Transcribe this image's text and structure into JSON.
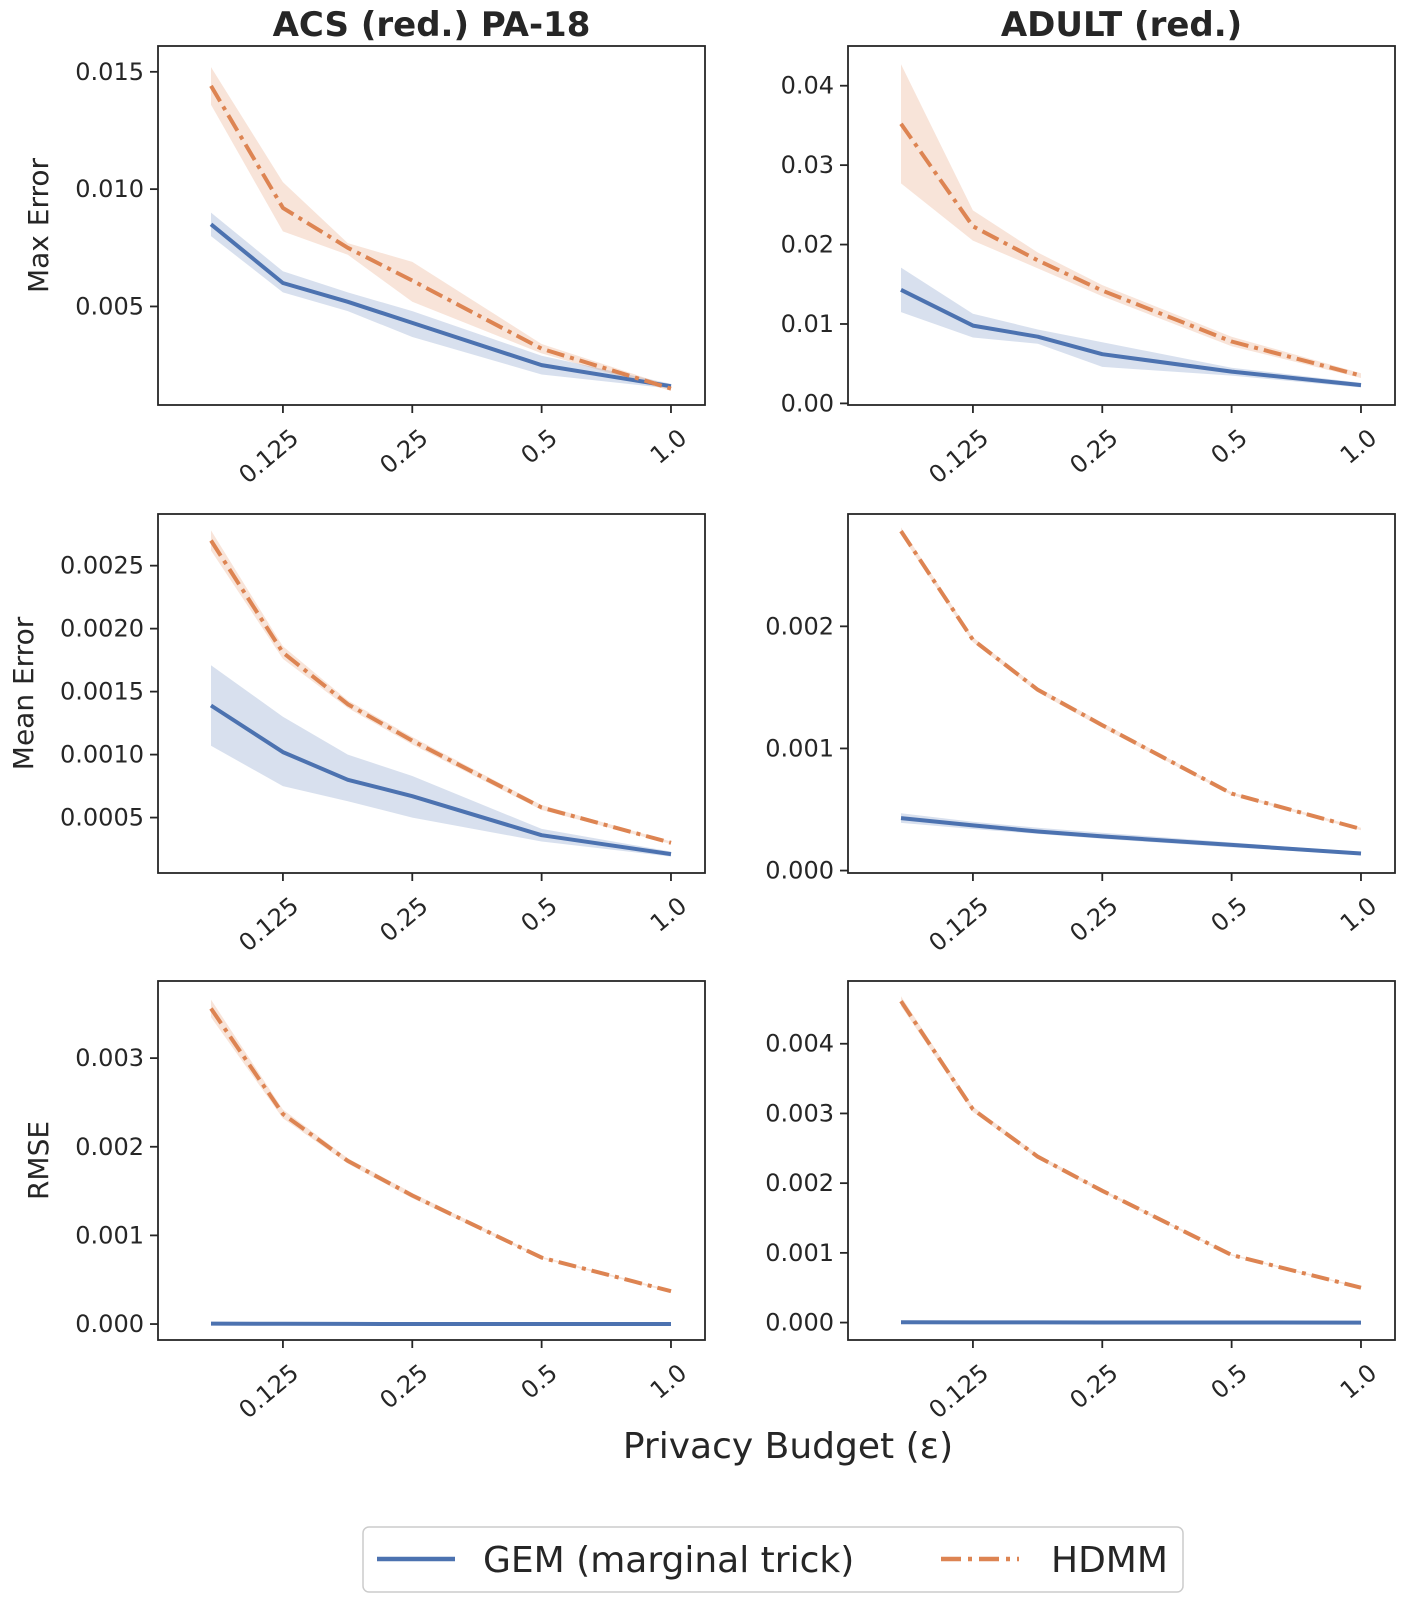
{
  "colors": {
    "gem": "#4c72b0",
    "hdmm": "#dd8452"
  },
  "figure": {
    "xlabel": "Privacy Budget (ε)"
  },
  "legend": {
    "gem_label": "GEM (marginal trick)",
    "hdmm_label": "HDMM"
  },
  "chart_data": [
    {
      "type": "line",
      "panel": "acs-max",
      "title": "ACS (red.) PA-18",
      "ylabel": "Max Error",
      "xscale": "log2",
      "x": [
        0.085,
        0.125,
        0.177,
        0.25,
        0.5,
        1.0
      ],
      "xticks": [
        "0.125",
        "0.25",
        "0.5",
        "1.0"
      ],
      "xtick_values": [
        0.125,
        0.25,
        0.5,
        1.0
      ],
      "xlim": [
        0.064,
        1.2
      ],
      "ylim": [
        0.0008,
        0.0161
      ],
      "yticks": [
        "0.005",
        "0.010",
        "0.015"
      ],
      "ytick_values": [
        0.005,
        0.01,
        0.015
      ],
      "series": [
        {
          "name": "GEM (marginal trick)",
          "style": "solid",
          "x": [
            0.085,
            0.125,
            0.177,
            0.25,
            0.5,
            1.0
          ],
          "values": [
            0.0085,
            0.006,
            0.0052,
            0.0043,
            0.0025,
            0.0016
          ],
          "ci_low": [
            0.008,
            0.0056,
            0.0048,
            0.0037,
            0.0021,
            0.0015
          ],
          "ci_high": [
            0.009,
            0.0065,
            0.0056,
            0.0048,
            0.0029,
            0.0017
          ]
        },
        {
          "name": "HDMM",
          "style": "dashdot",
          "x": [
            0.085,
            0.125,
            0.177,
            0.25,
            0.5,
            1.0
          ],
          "values": [
            0.0144,
            0.0092,
            0.0075,
            0.0061,
            0.0032,
            0.0015
          ],
          "ci_low": [
            0.0136,
            0.0082,
            0.0072,
            0.0052,
            0.003,
            0.0014
          ],
          "ci_high": [
            0.0152,
            0.0103,
            0.0077,
            0.0069,
            0.0034,
            0.0016
          ]
        }
      ]
    },
    {
      "type": "line",
      "panel": "adult-max",
      "title": "ADULT (red.)",
      "ylabel": "",
      "xscale": "log2",
      "x": [
        0.085,
        0.125,
        0.177,
        0.25,
        0.5,
        1.0
      ],
      "xticks": [
        "0.125",
        "0.25",
        "0.5",
        "1.0"
      ],
      "xtick_values": [
        0.125,
        0.25,
        0.5,
        1.0
      ],
      "xlim": [
        0.064,
        1.2
      ],
      "ylim": [
        -0.0002,
        0.045
      ],
      "yticks": [
        "0.00",
        "0.01",
        "0.02",
        "0.03",
        "0.04"
      ],
      "ytick_values": [
        0.0,
        0.01,
        0.02,
        0.03,
        0.04
      ],
      "series": [
        {
          "name": "GEM (marginal trick)",
          "style": "solid",
          "x": [
            0.085,
            0.125,
            0.177,
            0.25,
            0.5,
            1.0
          ],
          "values": [
            0.0143,
            0.0098,
            0.0084,
            0.0062,
            0.004,
            0.0023
          ],
          "ci_low": [
            0.0115,
            0.0083,
            0.0075,
            0.0046,
            0.0035,
            0.002
          ],
          "ci_high": [
            0.0171,
            0.0113,
            0.0093,
            0.0077,
            0.0045,
            0.0026
          ]
        },
        {
          "name": "HDMM",
          "style": "dashdot",
          "x": [
            0.085,
            0.125,
            0.177,
            0.25,
            0.5,
            1.0
          ],
          "values": [
            0.0352,
            0.0223,
            0.018,
            0.0142,
            0.0078,
            0.0035
          ],
          "ci_low": [
            0.0277,
            0.0205,
            0.017,
            0.0135,
            0.0072,
            0.0032
          ],
          "ci_high": [
            0.0427,
            0.0243,
            0.019,
            0.0149,
            0.0084,
            0.0038
          ]
        }
      ]
    },
    {
      "type": "line",
      "panel": "acs-mean",
      "title": "",
      "ylabel": "Mean Error",
      "xscale": "log2",
      "x": [
        0.085,
        0.125,
        0.177,
        0.25,
        0.5,
        1.0
      ],
      "xticks": [
        "0.125",
        "0.25",
        "0.5",
        "1.0"
      ],
      "xtick_values": [
        0.125,
        0.25,
        0.5,
        1.0
      ],
      "xlim": [
        0.064,
        1.2
      ],
      "ylim": [
        6e-05,
        0.00291
      ],
      "yticks": [
        "0.0005",
        "0.0010",
        "0.0015",
        "0.0020",
        "0.0025"
      ],
      "ytick_values": [
        0.0005,
        0.001,
        0.0015,
        0.002,
        0.0025
      ],
      "series": [
        {
          "name": "GEM (marginal trick)",
          "style": "solid",
          "x": [
            0.085,
            0.125,
            0.177,
            0.25,
            0.5,
            1.0
          ],
          "values": [
            0.00139,
            0.00102,
            0.0008,
            0.00067,
            0.00036,
            0.00021
          ],
          "ci_low": [
            0.00107,
            0.00075,
            0.00063,
            0.0005,
            0.00031,
            0.00019
          ],
          "ci_high": [
            0.00171,
            0.0013,
            0.001,
            0.00083,
            0.00041,
            0.00023
          ]
        },
        {
          "name": "HDMM",
          "style": "dashdot",
          "x": [
            0.085,
            0.125,
            0.177,
            0.25,
            0.5,
            1.0
          ],
          "values": [
            0.0027,
            0.00181,
            0.0014,
            0.00111,
            0.00058,
            0.0003
          ],
          "ci_low": [
            0.00262,
            0.00176,
            0.00137,
            0.00108,
            0.00056,
            0.00029
          ],
          "ci_high": [
            0.00278,
            0.00186,
            0.00143,
            0.00114,
            0.0006,
            0.00031
          ]
        }
      ]
    },
    {
      "type": "line",
      "panel": "adult-mean",
      "title": "",
      "ylabel": "",
      "xscale": "log2",
      "x": [
        0.085,
        0.125,
        0.177,
        0.25,
        0.5,
        1.0
      ],
      "xticks": [
        "0.125",
        "0.25",
        "0.5",
        "1.0"
      ],
      "xtick_values": [
        0.125,
        0.25,
        0.5,
        1.0
      ],
      "xlim": [
        0.064,
        1.2
      ],
      "ylim": [
        -2e-05,
        0.00292
      ],
      "yticks": [
        "0.000",
        "0.001",
        "0.002"
      ],
      "ytick_values": [
        0.0,
        0.001,
        0.002
      ],
      "series": [
        {
          "name": "GEM (marginal trick)",
          "style": "solid",
          "x": [
            0.085,
            0.125,
            0.177,
            0.25,
            0.5,
            1.0
          ],
          "values": [
            0.00043,
            0.00037,
            0.00032,
            0.00028,
            0.00021,
            0.00014
          ],
          "ci_low": [
            0.00039,
            0.00034,
            0.0003,
            0.00026,
            0.00019,
            0.00013
          ],
          "ci_high": [
            0.00047,
            0.0004,
            0.00035,
            0.00031,
            0.00023,
            0.00015
          ]
        },
        {
          "name": "HDMM",
          "style": "dashdot",
          "x": [
            0.085,
            0.125,
            0.177,
            0.25,
            0.5,
            1.0
          ],
          "values": [
            0.00278,
            0.00189,
            0.00148,
            0.00119,
            0.00063,
            0.00034
          ],
          "ci_low": [
            0.00275,
            0.00187,
            0.00146,
            0.00117,
            0.00062,
            0.00033
          ],
          "ci_high": [
            0.00281,
            0.00191,
            0.0015,
            0.00121,
            0.00064,
            0.00035
          ]
        }
      ]
    },
    {
      "type": "line",
      "panel": "acs-rmse",
      "title": "",
      "ylabel": "RMSE",
      "xscale": "log2",
      "x": [
        0.085,
        0.125,
        0.177,
        0.25,
        0.5,
        1.0
      ],
      "xticks": [
        "0.125",
        "0.25",
        "0.5",
        "1.0"
      ],
      "xtick_values": [
        0.125,
        0.25,
        0.5,
        1.0
      ],
      "xlim": [
        0.064,
        1.2
      ],
      "ylim": [
        -0.00018,
        0.00387
      ],
      "yticks": [
        "0.000",
        "0.001",
        "0.002",
        "0.003"
      ],
      "ytick_values": [
        0.0,
        0.001,
        0.002,
        0.003
      ],
      "series": [
        {
          "name": "GEM (marginal trick)",
          "style": "solid",
          "x": [
            0.085,
            0.125,
            0.177,
            0.25,
            0.5,
            1.0
          ],
          "values": [
            5e-06,
            3e-06,
            2e-06,
            1e-06,
            5e-07,
            3e-07
          ],
          "ci_low": [
            4e-06,
            2e-06,
            1e-06,
            8e-07,
            4e-07,
            2e-07
          ],
          "ci_high": [
            6e-06,
            4e-06,
            3e-06,
            1.2e-06,
            6e-07,
            4e-07
          ]
        },
        {
          "name": "HDMM",
          "style": "dashdot",
          "x": [
            0.085,
            0.125,
            0.177,
            0.25,
            0.5,
            1.0
          ],
          "values": [
            0.00356,
            0.00237,
            0.00184,
            0.00145,
            0.00075,
            0.00037
          ],
          "ci_low": [
            0.00346,
            0.00232,
            0.00181,
            0.00142,
            0.00074,
            0.00036
          ],
          "ci_high": [
            0.00366,
            0.00242,
            0.00187,
            0.00148,
            0.00076,
            0.00038
          ]
        }
      ]
    },
    {
      "type": "line",
      "panel": "adult-rmse",
      "title": "",
      "ylabel": "",
      "xscale": "log2",
      "x": [
        0.085,
        0.125,
        0.177,
        0.25,
        0.5,
        1.0
      ],
      "xticks": [
        "0.125",
        "0.25",
        "0.5",
        "1.0"
      ],
      "xtick_values": [
        0.125,
        0.25,
        0.5,
        1.0
      ],
      "xlim": [
        0.064,
        1.2
      ],
      "ylim": [
        -0.00025,
        0.0049
      ],
      "yticks": [
        "0.000",
        "0.001",
        "0.002",
        "0.003",
        "0.004"
      ],
      "ytick_values": [
        0.0,
        0.001,
        0.002,
        0.003,
        0.004
      ],
      "series": [
        {
          "name": "GEM (marginal trick)",
          "style": "solid",
          "x": [
            0.085,
            0.125,
            0.177,
            0.25,
            0.5,
            1.0
          ],
          "values": [
            4e-06,
            3e-06,
            2e-06,
            1e-06,
            5e-07,
            3e-07
          ],
          "ci_low": [
            3e-06,
            2e-06,
            1e-06,
            8e-07,
            4e-07,
            2e-07
          ],
          "ci_high": [
            5e-06,
            4e-06,
            3e-06,
            1.2e-06,
            6e-07,
            4e-07
          ]
        },
        {
          "name": "HDMM",
          "style": "dashdot",
          "x": [
            0.085,
            0.125,
            0.177,
            0.25,
            0.5,
            1.0
          ],
          "values": [
            0.00461,
            0.00306,
            0.00238,
            0.00189,
            0.00097,
            0.0005
          ],
          "ci_low": [
            0.00454,
            0.00302,
            0.00235,
            0.00187,
            0.00096,
            0.00049
          ],
          "ci_high": [
            0.00468,
            0.0031,
            0.00241,
            0.00191,
            0.00098,
            0.00051
          ]
        }
      ]
    }
  ]
}
